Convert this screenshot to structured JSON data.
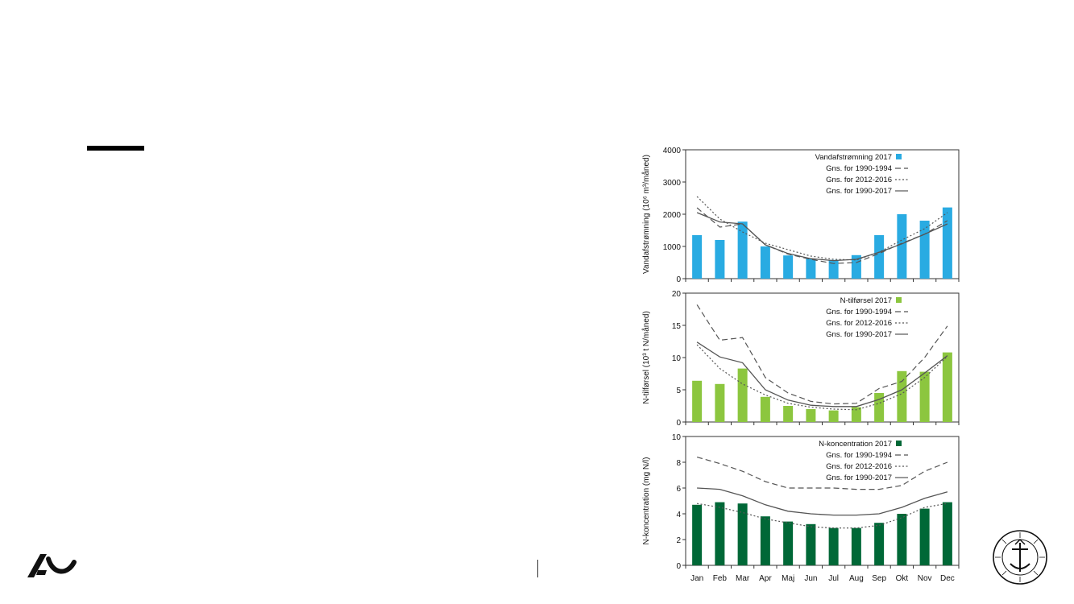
{
  "months": [
    "Jan",
    "Feb",
    "Mar",
    "Apr",
    "Maj",
    "Jun",
    "Jul",
    "Aug",
    "Sep",
    "Okt",
    "Nov",
    "Dec"
  ],
  "legend_labels": [
    "Gns. for 1990-1994",
    "Gns. for 2012-2016",
    "Gns. for 1990-2017"
  ],
  "seal_text": "SOLIUM PETIT IN PROFUNDIS · UNIVERSITAS ARHUSIENSIS",
  "colors": {
    "water": "#29ABE2",
    "n_supply": "#8CC63F",
    "n_conc": "#006837",
    "line": "#555555"
  },
  "chart_data": [
    {
      "type": "bar",
      "categories": [
        "Jan",
        "Feb",
        "Mar",
        "Apr",
        "Maj",
        "Jun",
        "Jul",
        "Aug",
        "Sep",
        "Okt",
        "Nov",
        "Dec"
      ],
      "ylabel": "Vandafstrømning (10⁶ m³/måned)",
      "ylim": [
        0,
        4000
      ],
      "yticks": [
        "0",
        "1000",
        "2000",
        "3000",
        "4000"
      ],
      "grid": false,
      "legend_placement": "top-right",
      "series": [
        {
          "name": "Vandafstrømning 2017",
          "kind": "bar",
          "values": [
            1350,
            1200,
            1770,
            1000,
            720,
            620,
            580,
            730,
            1350,
            2000,
            1800,
            2210
          ]
        },
        {
          "name": "Gns. for 1990-1994",
          "kind": "line",
          "style": "dashed",
          "values": [
            2200,
            1600,
            1700,
            1050,
            760,
            600,
            470,
            500,
            780,
            1100,
            1380,
            1800
          ]
        },
        {
          "name": "Gns. for 2012-2016",
          "kind": "line",
          "style": "dotted",
          "values": [
            2550,
            1850,
            1450,
            1100,
            900,
            700,
            600,
            580,
            820,
            1200,
            1550,
            2050
          ]
        },
        {
          "name": "Gns. for 1990-2017",
          "kind": "line",
          "style": "solid",
          "values": [
            2050,
            1760,
            1700,
            1050,
            780,
            620,
            560,
            600,
            820,
            1080,
            1380,
            1700
          ]
        }
      ]
    },
    {
      "type": "bar",
      "categories": [
        "Jan",
        "Feb",
        "Mar",
        "Apr",
        "Maj",
        "Jun",
        "Jul",
        "Aug",
        "Sep",
        "Okt",
        "Nov",
        "Dec"
      ],
      "ylabel": "N-tilførsel (10³ t N/måned)",
      "ylim": [
        0,
        20
      ],
      "yticks": [
        "0",
        "5",
        "10",
        "15",
        "20"
      ],
      "grid": false,
      "legend_placement": "top-right",
      "series": [
        {
          "name": "N-tilførsel 2017",
          "kind": "bar",
          "values": [
            6.4,
            5.9,
            8.3,
            3.9,
            2.5,
            2.0,
            1.8,
            2.3,
            4.5,
            7.9,
            7.8,
            10.8
          ]
        },
        {
          "name": "Gns. for 1990-1994",
          "kind": "line",
          "style": "dashed",
          "values": [
            18.2,
            12.7,
            13.1,
            6.9,
            4.5,
            3.2,
            2.8,
            2.9,
            5.2,
            6.3,
            10.0,
            14.9
          ]
        },
        {
          "name": "Gns. for 2012-2016",
          "kind": "line",
          "style": "dotted",
          "values": [
            12.0,
            8.3,
            5.9,
            4.2,
            2.9,
            2.3,
            2.0,
            1.9,
            2.9,
            4.4,
            6.9,
            10.2
          ]
        },
        {
          "name": "Gns. for 1990-2017",
          "kind": "line",
          "style": "solid",
          "values": [
            12.4,
            10.1,
            9.2,
            5.0,
            3.4,
            2.6,
            2.4,
            2.4,
            3.5,
            5.0,
            7.6,
            10.3
          ]
        }
      ]
    },
    {
      "type": "bar",
      "categories": [
        "Jan",
        "Feb",
        "Mar",
        "Apr",
        "Maj",
        "Jun",
        "Jul",
        "Aug",
        "Sep",
        "Okt",
        "Nov",
        "Dec"
      ],
      "ylabel": "N-koncentration (mg N/l)",
      "ylim": [
        0,
        10
      ],
      "yticks": [
        "0",
        "2",
        "4",
        "6",
        "8",
        "10"
      ],
      "grid": false,
      "legend_placement": "top-right",
      "series": [
        {
          "name": "N-koncentration 2017",
          "kind": "bar",
          "values": [
            4.7,
            4.9,
            4.8,
            3.8,
            3.4,
            3.2,
            2.9,
            2.9,
            3.3,
            4.0,
            4.4,
            4.9
          ]
        },
        {
          "name": "Gns. for 1990-1994",
          "kind": "line",
          "style": "dashed",
          "values": [
            8.4,
            7.9,
            7.3,
            6.5,
            6.0,
            6.0,
            6.0,
            5.9,
            5.9,
            6.2,
            7.3,
            8.0
          ]
        },
        {
          "name": "Gns. for 2012-2016",
          "kind": "line",
          "style": "dotted",
          "values": [
            4.8,
            4.5,
            4.1,
            3.6,
            3.3,
            3.0,
            2.9,
            2.9,
            3.1,
            3.7,
            4.5,
            4.8
          ]
        },
        {
          "name": "Gns. for 1990-2017",
          "kind": "line",
          "style": "solid",
          "values": [
            6.0,
            5.9,
            5.4,
            4.7,
            4.2,
            4.0,
            3.9,
            3.9,
            4.0,
            4.5,
            5.2,
            5.7
          ]
        }
      ]
    }
  ]
}
